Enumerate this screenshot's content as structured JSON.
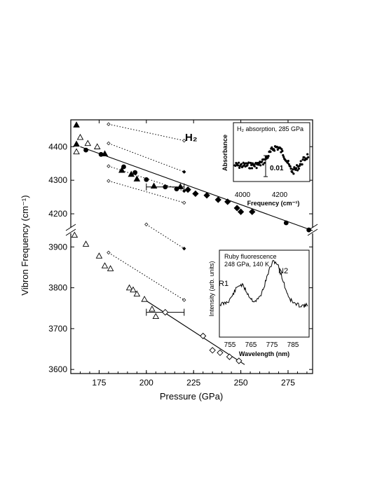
{
  "chart_data": {
    "type": "scatter",
    "title": "",
    "xlabel": "Pressure (GPa)",
    "ylabel": "Vibron Frequency (cm⁻¹)",
    "xlim": [
      160,
      288
    ],
    "x_ticks": [
      "175",
      "200",
      "225",
      "250",
      "275"
    ],
    "ylim_upper": [
      4150,
      4480
    ],
    "ylim_lower": [
      3590,
      3940
    ],
    "y_ticks_upper": [
      "4200",
      "4300",
      "4400"
    ],
    "y_ticks_lower": [
      "3600",
      "3700",
      "3800",
      "3900"
    ],
    "axis_break": "y-axis broken between 3940 and 4150",
    "annotation": "H₂",
    "series": [
      {
        "marker": "filled-triangle",
        "points": [
          [
            163,
            4465
          ],
          [
            163,
            4408
          ],
          [
            178,
            4379
          ],
          [
            187,
            4330
          ],
          [
            192,
            4318
          ],
          [
            195,
            4304
          ],
          [
            204,
            4283
          ],
          [
            218,
            4281
          ]
        ]
      },
      {
        "marker": "filled-circle",
        "points": [
          [
            168,
            4390
          ],
          [
            176,
            4377
          ],
          [
            188,
            4340
          ],
          [
            194,
            4323
          ],
          [
            200,
            4302
          ],
          [
            210,
            4280
          ],
          [
            216,
            4274
          ],
          [
            274,
            4173
          ],
          [
            286,
            4152
          ]
        ]
      },
      {
        "marker": "filled-diamond",
        "points": [
          [
            222,
            4272
          ],
          [
            226,
            4260
          ],
          [
            232,
            4255
          ],
          [
            238,
            4242
          ],
          [
            243,
            4236
          ],
          [
            248,
            4217
          ],
          [
            250,
            4206
          ],
          [
            256,
            4206
          ]
        ]
      },
      {
        "marker": "open-triangle",
        "points": [
          [
            163,
            4385
          ],
          [
            165,
            4428
          ],
          [
            169,
            4410
          ],
          [
            174,
            4400
          ],
          [
            162,
            3929
          ],
          [
            168,
            3907
          ],
          [
            175,
            3878
          ],
          [
            178,
            3854
          ],
          [
            181,
            3847
          ],
          [
            191,
            3800
          ],
          [
            193,
            3795
          ],
          [
            195,
            3785
          ],
          [
            199,
            3772
          ],
          [
            203,
            3748
          ],
          [
            205,
            3730
          ]
        ]
      },
      {
        "marker": "open-diamond",
        "points": [
          [
            210,
            3740
          ],
          [
            230,
            3682
          ],
          [
            235,
            3647
          ],
          [
            239,
            3641
          ],
          [
            244,
            3631
          ],
          [
            249,
            3621
          ]
        ]
      }
    ],
    "fit_lines": [
      {
        "name": "upper",
        "points": [
          [
            165,
            4400
          ],
          [
            288,
            4150
          ]
        ]
      },
      {
        "name": "lower",
        "points": [
          [
            200,
            3768
          ],
          [
            252,
            3612
          ]
        ]
      }
    ],
    "dotted_lines": [
      [
        [
          180,
          4467
        ],
        [
          220,
          4418
        ]
      ],
      [
        [
          180,
          4410
        ],
        [
          220,
          4325
        ]
      ],
      [
        [
          180,
          4342
        ],
        [
          220,
          4268
        ]
      ],
      [
        [
          180,
          4298
        ],
        [
          220,
          4233
        ]
      ],
      [
        [
          200,
          3955
        ],
        [
          220,
          3896
        ]
      ],
      [
        [
          180,
          3886
        ],
        [
          220,
          3770
        ]
      ]
    ],
    "error_bars": [
      {
        "x": 210,
        "y": 4280,
        "xerr": 10
      },
      {
        "x": 210,
        "y": 3740,
        "xerr": 10
      }
    ],
    "insets": [
      {
        "title": "H₂ absorption, 285 GPa",
        "xlabel": "Frequency (cm⁻¹)",
        "ylabel": "Absorbance",
        "x_ticks": [
          "4000",
          "4200"
        ],
        "scale_bar_label": "0.01",
        "xlim": [
          3950,
          4340
        ],
        "description_of_data": "noisy absorption spectrum with peak near 4170 cm-1"
      },
      {
        "title": "Ruby fluorescence",
        "subtitle": "248 GPa, 140 K",
        "xlabel": "Wavelength (nm)",
        "ylabel": "Intensity (arb. units)",
        "x_ticks": [
          "755",
          "765",
          "775",
          "785"
        ],
        "peak_labels": [
          "R1",
          "N2"
        ],
        "xlim": [
          748,
          791
        ]
      }
    ]
  }
}
